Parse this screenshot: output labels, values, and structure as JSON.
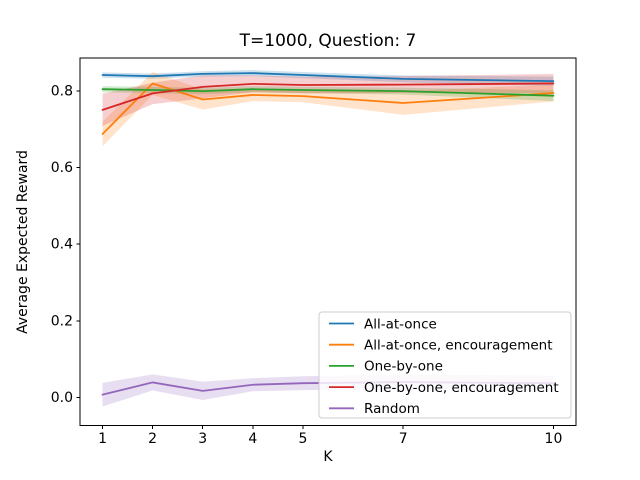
{
  "chart_data": {
    "type": "line",
    "title": "T=1000, Question: 7",
    "xlabel": "K",
    "ylabel": "Average Expected Reward",
    "x": [
      1,
      2,
      3,
      4,
      5,
      7,
      10
    ],
    "xtick_values": [
      1,
      2,
      3,
      4,
      5,
      7,
      10
    ],
    "xtick_labels": [
      "1",
      "2",
      "3",
      "4",
      "5",
      "7",
      "10"
    ],
    "ytick_values": [
      0.0,
      0.2,
      0.4,
      0.6,
      0.8
    ],
    "ytick_labels": [
      "0.0",
      "0.2",
      "0.4",
      "0.6",
      "0.8"
    ],
    "xlim": [
      0.55,
      10.45
    ],
    "ylim": [
      -0.0735,
      0.8865
    ],
    "grid": false,
    "legend_position": "lower-right-inside",
    "band_alpha": 0.22,
    "axis_color": "#000000",
    "background_color": "#ffffff",
    "legend_edge_color": "#cccccc",
    "legend_face_color": "#ffffff",
    "series": [
      {
        "name": "All-at-once",
        "color": "#1f77b4",
        "values": [
          0.842,
          0.839,
          0.845,
          0.847,
          0.842,
          0.832,
          0.826
        ],
        "band_lower": [
          0.835,
          0.832,
          0.838,
          0.839,
          0.834,
          0.823,
          0.814
        ],
        "band_upper": [
          0.849,
          0.846,
          0.852,
          0.855,
          0.85,
          0.841,
          0.838
        ]
      },
      {
        "name": "All-at-once, encouragement",
        "color": "#ff7f0e",
        "values": [
          0.688,
          0.82,
          0.778,
          0.79,
          0.787,
          0.769,
          0.795
        ],
        "band_lower": [
          0.656,
          0.79,
          0.752,
          0.774,
          0.771,
          0.738,
          0.773
        ],
        "band_upper": [
          0.72,
          0.85,
          0.804,
          0.806,
          0.803,
          0.8,
          0.817
        ]
      },
      {
        "name": "One-by-one",
        "color": "#2ca02c",
        "values": [
          0.805,
          0.803,
          0.8,
          0.805,
          0.803,
          0.8,
          0.788
        ],
        "band_lower": [
          0.797,
          0.795,
          0.792,
          0.797,
          0.795,
          0.791,
          0.774
        ],
        "band_upper": [
          0.813,
          0.811,
          0.808,
          0.813,
          0.811,
          0.809,
          0.802
        ]
      },
      {
        "name": "One-by-one, encouragement",
        "color": "#d62728",
        "values": [
          0.751,
          0.794,
          0.811,
          0.819,
          0.816,
          0.817,
          0.82
        ],
        "band_lower": [
          0.709,
          0.766,
          0.781,
          0.797,
          0.794,
          0.795,
          0.795
        ],
        "band_upper": [
          0.793,
          0.822,
          0.841,
          0.841,
          0.838,
          0.839,
          0.845
        ]
      },
      {
        "name": "Random",
        "color": "#9467bd",
        "values": [
          0.007,
          0.039,
          0.017,
          0.033,
          0.037,
          0.04,
          0.037
        ],
        "band_lower": [
          -0.024,
          0.018,
          -0.007,
          0.016,
          0.019,
          0.02,
          0.017
        ],
        "band_upper": [
          0.038,
          0.06,
          0.041,
          0.05,
          0.055,
          0.06,
          0.057
        ]
      }
    ]
  }
}
